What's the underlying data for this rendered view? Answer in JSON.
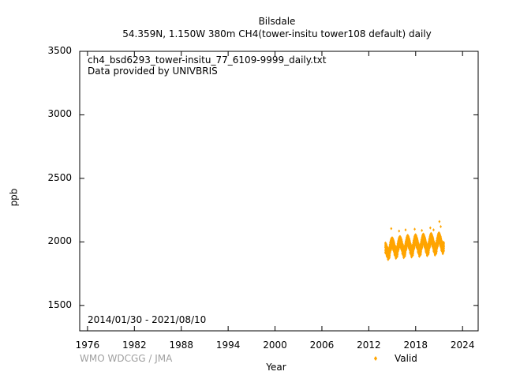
{
  "header": {
    "station": "Bilsdale",
    "subtitle": "54.359N, 1.150W 380m    CH4(tower-insitu tower108 default) daily"
  },
  "info": {
    "filename": "ch4_bsd6293_tower-insitu_77_6109-9999_daily.txt",
    "provider": "Data provided by UNIVBRIS",
    "period": "2014/01/30 - 2021/08/10"
  },
  "footer": {
    "credit": "WMO WDCGG / JMA"
  },
  "chart_data": {
    "type": "scatter",
    "title": "Bilsdale",
    "subtitle": "54.359N, 1.150W 380m    CH4(tower-insitu tower108 default) daily",
    "xlabel": "Year",
    "ylabel": "ppb",
    "xlim": [
      1975,
      2026
    ],
    "ylim": [
      1300,
      3500
    ],
    "x_ticks": [
      1976,
      1982,
      1988,
      1994,
      2000,
      2006,
      2012,
      2018,
      2024
    ],
    "y_ticks": [
      1500,
      2000,
      2500,
      3000,
      3500
    ],
    "grid": false,
    "legend_position": "bottom-right",
    "series": [
      {
        "name": "Valid",
        "color": "#ffa500",
        "marker": "diamond",
        "x_range": [
          "2014/01/30",
          "2021/08/10"
        ],
        "points": [
          {
            "x": "2014-02",
            "y": 1960
          },
          {
            "x": "2014-04",
            "y": 1935
          },
          {
            "x": "2014-06",
            "y": 1905
          },
          {
            "x": "2014-08",
            "y": 1915
          },
          {
            "x": "2014-10",
            "y": 1975
          },
          {
            "x": "2014-12",
            "y": 2000
          },
          {
            "x": "2015-02",
            "y": 1985
          },
          {
            "x": "2015-04",
            "y": 1945
          },
          {
            "x": "2015-06",
            "y": 1915
          },
          {
            "x": "2015-08",
            "y": 1925
          },
          {
            "x": "2015-10",
            "y": 1980
          },
          {
            "x": "2015-12",
            "y": 2010
          },
          {
            "x": "2016-02",
            "y": 1995
          },
          {
            "x": "2016-04",
            "y": 1955
          },
          {
            "x": "2016-06",
            "y": 1920
          },
          {
            "x": "2016-08",
            "y": 1930
          },
          {
            "x": "2016-10",
            "y": 1985
          },
          {
            "x": "2016-12",
            "y": 2020
          },
          {
            "x": "2017-02",
            "y": 2000
          },
          {
            "x": "2017-04",
            "y": 1960
          },
          {
            "x": "2017-06",
            "y": 1925
          },
          {
            "x": "2017-08",
            "y": 1935
          },
          {
            "x": "2017-10",
            "y": 1990
          },
          {
            "x": "2017-12",
            "y": 2025
          },
          {
            "x": "2018-02",
            "y": 2005
          },
          {
            "x": "2018-04",
            "y": 1965
          },
          {
            "x": "2018-06",
            "y": 1930
          },
          {
            "x": "2018-08",
            "y": 1940
          },
          {
            "x": "2018-10",
            "y": 1995
          },
          {
            "x": "2018-12",
            "y": 2030
          },
          {
            "x": "2019-02",
            "y": 2010
          },
          {
            "x": "2019-04",
            "y": 1970
          },
          {
            "x": "2019-06",
            "y": 1935
          },
          {
            "x": "2019-08",
            "y": 1945
          },
          {
            "x": "2019-10",
            "y": 2000
          },
          {
            "x": "2019-12",
            "y": 2035
          },
          {
            "x": "2020-02",
            "y": 2015
          },
          {
            "x": "2020-04",
            "y": 1975
          },
          {
            "x": "2020-06",
            "y": 1940
          },
          {
            "x": "2020-08",
            "y": 1950
          },
          {
            "x": "2020-10",
            "y": 2005
          },
          {
            "x": "2020-12",
            "y": 2040
          },
          {
            "x": "2021-02",
            "y": 2020
          },
          {
            "x": "2021-04",
            "y": 1980
          },
          {
            "x": "2021-06",
            "y": 1950
          },
          {
            "x": "2021-08",
            "y": 1965
          },
          {
            "x": "2014-11",
            "y": 2105
          },
          {
            "x": "2015-11",
            "y": 2085
          },
          {
            "x": "2016-09",
            "y": 2095
          },
          {
            "x": "2017-11",
            "y": 2100
          },
          {
            "x": "2018-10",
            "y": 2090
          },
          {
            "x": "2019-11",
            "y": 2110
          },
          {
            "x": "2020-04",
            "y": 2095
          },
          {
            "x": "2021-01",
            "y": 2160
          },
          {
            "x": "2021-03",
            "y": 2120
          },
          {
            "x": "2014-07",
            "y": 1872
          },
          {
            "x": "2015-07",
            "y": 1885
          },
          {
            "x": "2016-07",
            "y": 1895
          }
        ]
      }
    ]
  }
}
